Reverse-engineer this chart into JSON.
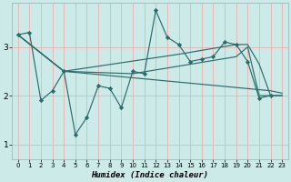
{
  "xlabel": "Humidex (Indice chaleur)",
  "bg_color": "#cceae8",
  "line_color": "#2d6b6b",
  "grid_color": "#e8b0b0",
  "xlim": [
    -0.5,
    23.5
  ],
  "ylim": [
    0.7,
    3.9
  ],
  "yticks": [
    1,
    2,
    3
  ],
  "xticks": [
    0,
    1,
    2,
    3,
    4,
    5,
    6,
    7,
    8,
    9,
    10,
    11,
    12,
    13,
    14,
    15,
    16,
    17,
    18,
    19,
    20,
    21,
    22,
    23
  ],
  "lines": [
    {
      "x": [
        0,
        1,
        2,
        3,
        4,
        5,
        6,
        7,
        8,
        9,
        10,
        11,
        12,
        13,
        14,
        15,
        16,
        17,
        18,
        19,
        20,
        21,
        22
      ],
      "y": [
        3.25,
        3.3,
        1.9,
        2.1,
        2.5,
        1.2,
        1.55,
        2.2,
        2.15,
        1.75,
        2.5,
        2.45,
        3.75,
        3.2,
        3.05,
        2.7,
        2.75,
        2.8,
        3.1,
        3.05,
        2.7,
        1.95,
        2.0
      ],
      "marker": true
    },
    {
      "x": [
        0,
        4,
        22,
        23
      ],
      "y": [
        3.25,
        2.5,
        2.1,
        2.05
      ],
      "marker": false
    },
    {
      "x": [
        0,
        4,
        14,
        19,
        20,
        21,
        22,
        23
      ],
      "y": [
        3.25,
        2.5,
        2.85,
        3.05,
        3.05,
        2.65,
        2.0,
        2.0
      ],
      "marker": false
    },
    {
      "x": [
        0,
        4,
        10,
        19,
        20,
        21,
        22,
        23
      ],
      "y": [
        3.25,
        2.5,
        2.45,
        2.8,
        3.0,
        2.0,
        2.0,
        2.0
      ],
      "marker": false
    }
  ]
}
